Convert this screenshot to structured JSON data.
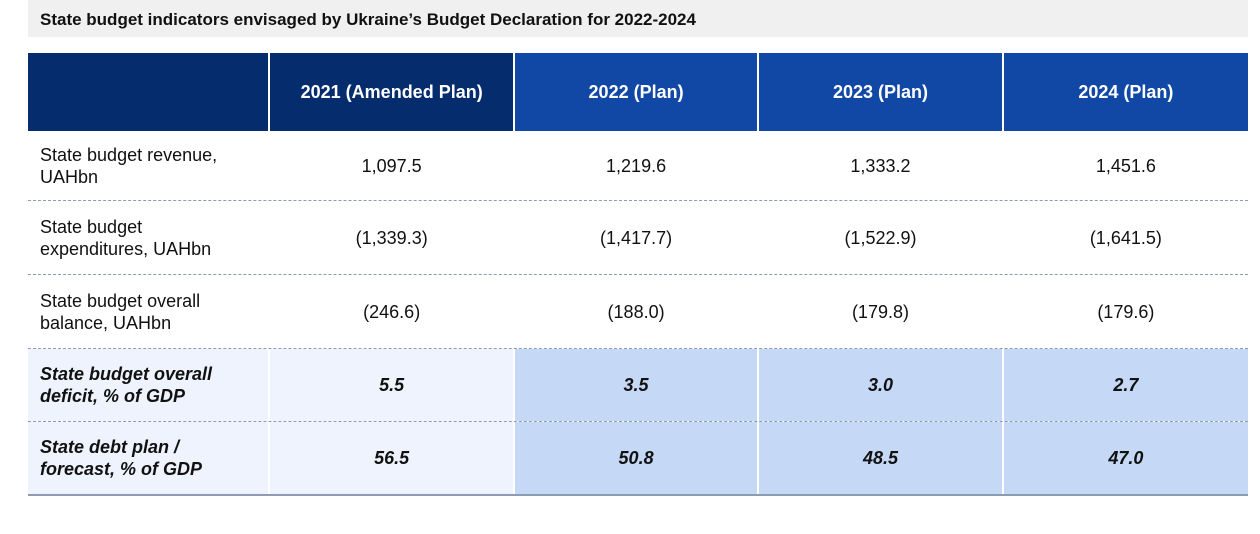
{
  "title": "State budget indicators envisaged by Ukraine’s Budget Declaration for 2022-2024",
  "headers": [
    "",
    "2021 (Amended Plan)",
    "2022 (Plan)",
    "2023 (Plan)",
    "2024 (Plan)"
  ],
  "rows": [
    {
      "label_line1": "State budget revenue,",
      "label_line2": "UAHbn",
      "values": [
        "1,097.5",
        "1,219.6",
        "1,333.2",
        "1,451.6"
      ]
    },
    {
      "label_line1": "State budget",
      "label_line2": "expenditures, UAHbn",
      "values": [
        "(1,339.3)",
        "(1,417.7)",
        "(1,522.9)",
        "(1,641.5)"
      ]
    },
    {
      "label_line1": "State budget overall",
      "label_line2": "balance, UAHbn",
      "values": [
        "(246.6)",
        "(188.0)",
        "(179.8)",
        "(179.6)"
      ]
    },
    {
      "label_line1": "State budget overall",
      "label_line2": "deficit, % of GDP",
      "values": [
        "5.5",
        "3.5",
        "3.0",
        "2.7"
      ]
    },
    {
      "label_line1": "State debt plan /",
      "label_line2": "forecast, % of GDP",
      "values": [
        "56.5",
        "50.8",
        "48.5",
        "47.0"
      ]
    }
  ],
  "colors": {
    "header_dark": "#052d6d",
    "header_blue": "#1148a6",
    "highlight_light": "#eef3fd",
    "highlight_blue": "#c5d8f6"
  }
}
